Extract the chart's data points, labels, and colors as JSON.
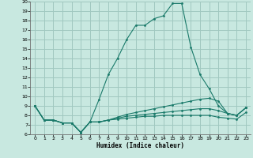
{
  "xlabel": "Humidex (Indice chaleur)",
  "bg_color": "#c8e8e0",
  "grid_color": "#a0c8c0",
  "line_color": "#1a7a6a",
  "xlim": [
    -0.5,
    23.5
  ],
  "ylim": [
    6,
    20
  ],
  "xticks": [
    0,
    1,
    2,
    3,
    4,
    5,
    6,
    7,
    8,
    9,
    10,
    11,
    12,
    13,
    14,
    15,
    16,
    17,
    18,
    19,
    20,
    21,
    22,
    23
  ],
  "yticks": [
    6,
    7,
    8,
    9,
    10,
    11,
    12,
    13,
    14,
    15,
    16,
    17,
    18,
    19,
    20
  ],
  "lines": [
    {
      "x": [
        0,
        1,
        2,
        3,
        4,
        5,
        6,
        7,
        8,
        9,
        10,
        11,
        12,
        13,
        14,
        15,
        16,
        17,
        18,
        19,
        20,
        21,
        22,
        23
      ],
      "y": [
        9,
        7.5,
        7.5,
        7.2,
        7.2,
        6.2,
        7.3,
        9.7,
        12.3,
        14,
        16,
        17.5,
        17.5,
        18.2,
        18.5,
        19.8,
        19.8,
        15.2,
        12.3,
        10.8,
        9.0,
        8.2,
        8.0,
        8.8
      ]
    },
    {
      "x": [
        0,
        1,
        2,
        3,
        4,
        5,
        6,
        7,
        8,
        9,
        10,
        11,
        12,
        13,
        14,
        15,
        16,
        17,
        18,
        19,
        20,
        21,
        22,
        23
      ],
      "y": [
        9,
        7.5,
        7.5,
        7.2,
        7.2,
        6.2,
        7.3,
        7.3,
        7.5,
        7.8,
        8.1,
        8.3,
        8.5,
        8.7,
        8.9,
        9.1,
        9.3,
        9.5,
        9.7,
        9.8,
        9.5,
        8.2,
        8.0,
        8.8
      ]
    },
    {
      "x": [
        0,
        1,
        2,
        3,
        4,
        5,
        6,
        7,
        8,
        9,
        10,
        11,
        12,
        13,
        14,
        15,
        16,
        17,
        18,
        19,
        20,
        21,
        22,
        23
      ],
      "y": [
        9,
        7.5,
        7.5,
        7.2,
        7.2,
        6.2,
        7.3,
        7.3,
        7.5,
        7.7,
        7.9,
        8.0,
        8.1,
        8.2,
        8.3,
        8.4,
        8.5,
        8.6,
        8.7,
        8.7,
        8.5,
        8.2,
        8.0,
        8.8
      ]
    },
    {
      "x": [
        0,
        1,
        2,
        3,
        4,
        5,
        6,
        7,
        8,
        9,
        10,
        11,
        12,
        13,
        14,
        15,
        16,
        17,
        18,
        19,
        20,
        21,
        22,
        23
      ],
      "y": [
        9,
        7.5,
        7.5,
        7.2,
        7.2,
        6.2,
        7.3,
        7.3,
        7.5,
        7.6,
        7.7,
        7.8,
        7.9,
        7.9,
        8.0,
        8.0,
        8.0,
        8.0,
        8.0,
        8.0,
        7.8,
        7.7,
        7.6,
        8.3
      ]
    }
  ]
}
